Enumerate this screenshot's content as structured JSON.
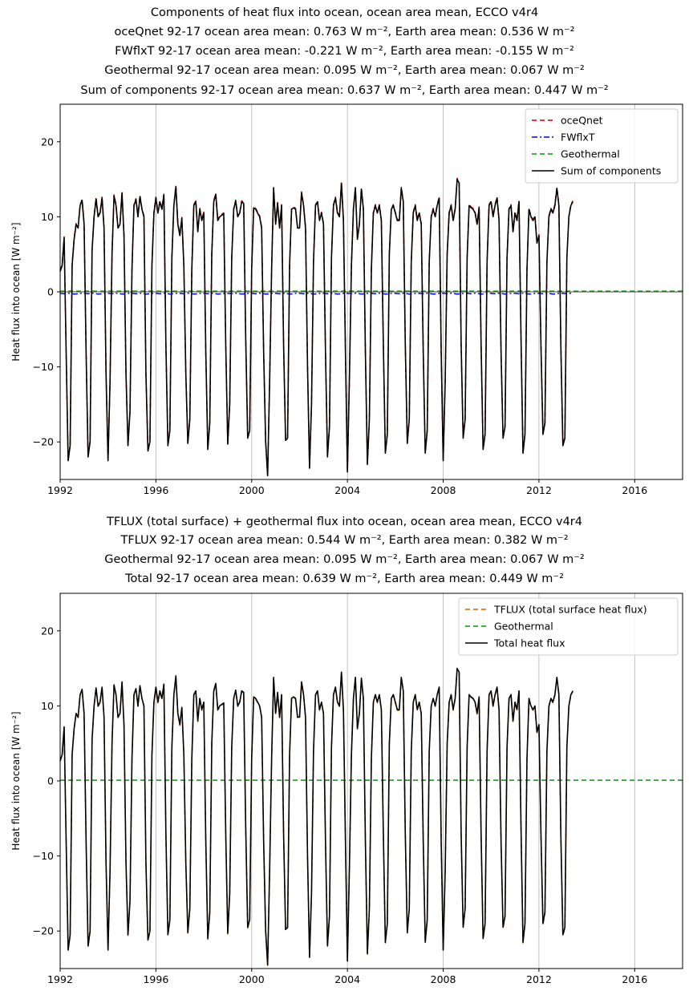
{
  "chart_data": [
    {
      "type": "line",
      "title_lines": [
        "Components of heat flux into ocean, ocean area mean, ECCO v4r4",
        "oceQnet 92-17 ocean area mean: 0.763 W m⁻², Earth area mean: 0.536 W m⁻²",
        "FWflxT 92-17 ocean area mean: -0.221 W m⁻², Earth area mean: -0.155 W m⁻²",
        "Geothermal 92-17 ocean area mean: 0.095 W m⁻², Earth area mean: 0.067 W m⁻²",
        "Sum of components 92-17 ocean area mean: 0.637 W m⁻², Earth area mean: 0.447 W m⁻²"
      ],
      "ylabel": "Heat flux into ocean [W m⁻²]",
      "xlabel": "",
      "xlim": [
        1992,
        2018
      ],
      "ylim": [
        -25,
        25
      ],
      "xticks": [
        1992,
        1996,
        2000,
        2004,
        2008,
        2012,
        2016
      ],
      "yticks": [
        -20,
        -10,
        0,
        10,
        20
      ],
      "vertical_grid": true,
      "zero_line": true,
      "legend_position": "top-right",
      "series": [
        {
          "name": "oceQnet",
          "color": "#cc0000",
          "style": "dashed",
          "source": "total_plus_offset",
          "offset": 0.13
        },
        {
          "name": "FWflxT",
          "color": "#0000ee",
          "style": "dashdot",
          "source": "fwflxt"
        },
        {
          "name": "Geothermal",
          "color": "#009900",
          "style": "dashed",
          "constant": 0.095
        },
        {
          "name": "Sum of components",
          "color": "#000000",
          "style": "solid",
          "source": "total"
        }
      ],
      "legend": [
        "oceQnet",
        "FWflxT",
        "Geothermal",
        "Sum of components"
      ]
    },
    {
      "type": "line",
      "title_lines": [
        "TFLUX (total surface) + geothermal flux into ocean, ocean area mean, ECCO v4r4",
        "TFLUX 92-17 ocean area mean: 0.544 W m⁻², Earth area mean: 0.382 W m⁻²",
        "Geothermal 92-17 ocean area mean: 0.095 W m⁻², Earth area mean: 0.067 W m⁻²",
        "Total 92-17 ocean area mean: 0.639 W m⁻², Earth area mean: 0.449 W m⁻²"
      ],
      "ylabel": "Heat flux into ocean [W m⁻²]",
      "xlabel": "",
      "xlim": [
        1992,
        2018
      ],
      "ylim": [
        -25,
        25
      ],
      "xticks": [
        1992,
        1996,
        2000,
        2004,
        2008,
        2012,
        2016
      ],
      "yticks": [
        -20,
        -10,
        0,
        10,
        20
      ],
      "vertical_grid": true,
      "zero_line": false,
      "legend_position": "top-right",
      "series": [
        {
          "name": "TFLUX (total surface heat flux)",
          "color": "#cc6600",
          "style": "dashed",
          "source": "total_plus_offset",
          "offset": -0.095
        },
        {
          "name": "Geothermal",
          "color": "#009900",
          "style": "dashed",
          "constant": 0.095
        },
        {
          "name": "Total heat flux",
          "color": "#000000",
          "style": "solid",
          "source": "total"
        }
      ],
      "legend": [
        "TFLUX (total surface heat flux)",
        "Geothermal",
        "Total heat flux"
      ]
    }
  ],
  "monthly_data": {
    "start": "1992-01",
    "total": [
      2.7,
      3.5,
      7.2,
      -8.0,
      -22.5,
      -20.5,
      3.5,
      7.0,
      9.0,
      8.5,
      11.5,
      12.2,
      9.0,
      -8.0,
      -22.0,
      -20.0,
      5.5,
      10.0,
      12.4,
      10.0,
      10.5,
      12.5,
      8.5,
      -11.0,
      -22.5,
      -12.0,
      5.0,
      12.8,
      11.5,
      8.5,
      9.0,
      13.2,
      7.5,
      -11.0,
      -20.5,
      -16.0,
      3.0,
      11.5,
      12.3,
      10.0,
      12.7,
      11.0,
      10.0,
      -11.0,
      -21.2,
      -20.0,
      3.5,
      10.5,
      12.5,
      10.5,
      12.0,
      11.0,
      12.9,
      -7.0,
      -20.5,
      -18.5,
      4.5,
      11.5,
      14.0,
      9.0,
      7.5,
      9.8,
      3.5,
      -11.0,
      -20.2,
      -17.0,
      3.0,
      11.5,
      12.0,
      8.0,
      11.0,
      9.5,
      10.5,
      -8.0,
      -21.0,
      -17.5,
      5.0,
      12.0,
      13.0,
      9.5,
      10.0,
      10.2,
      10.4,
      -7.0,
      -20.3,
      -15.0,
      4.5,
      11.0,
      12.1,
      10.0,
      10.5,
      12.0,
      11.8,
      -6.0,
      -19.5,
      -18.5,
      3.0,
      11.2,
      11.0,
      10.5,
      10.0,
      8.5,
      -8.0,
      -20.0,
      -24.5,
      -12.0,
      3.0,
      13.8,
      9.0,
      11.8,
      8.5,
      11.5,
      -7.0,
      -19.8,
      -19.5,
      3.5,
      11.0,
      11.2,
      11.0,
      8.5,
      8.5,
      13.2,
      11.5,
      8.5,
      -10.0,
      -23.5,
      -15.0,
      4.0,
      11.5,
      12.0,
      9.5,
      10.5,
      9.0,
      -8.0,
      -22.0,
      -18.0,
      4.5,
      11.5,
      12.5,
      10.5,
      10.0,
      14.5,
      9.5,
      -8.0,
      -24.0,
      -11.5,
      3.5,
      11.0,
      13.8,
      7.0,
      9.0,
      13.7,
      11.0,
      -8.0,
      -23.0,
      -17.0,
      3.0,
      10.5,
      11.5,
      10.5,
      11.5,
      9.5,
      -7.0,
      -21.5,
      -19.0,
      5.0,
      11.0,
      11.5,
      10.5,
      9.5,
      9.5,
      13.8,
      12.0,
      -7.0,
      -20.2,
      -17.0,
      4.0,
      10.5,
      11.5,
      9.5,
      10.5,
      9.0,
      -8.0,
      -21.5,
      -18.5,
      4.0,
      10.0,
      11.0,
      10.0,
      11.5,
      12.5,
      -8.0,
      -22.5,
      -12.0,
      5.0,
      10.5,
      11.5,
      9.5,
      11.0,
      15.0,
      14.5,
      -7.0,
      -19.5,
      -17.0,
      4.5,
      11.5,
      11.2,
      11.0,
      10.5,
      9.0,
      11.2,
      -7.0,
      -21.0,
      -19.0,
      4.0,
      11.5,
      12.0,
      10.0,
      11.5,
      12.5,
      9.5,
      -8.0,
      -19.5,
      -18.0,
      4.5,
      11.0,
      11.5,
      8.0,
      10.5,
      9.5,
      12.0,
      -6.0,
      -21.5,
      -19.0,
      3.0,
      11.0,
      10.0,
      9.5,
      10.0,
      6.5,
      7.5,
      -7.0,
      -19.0,
      -17.5,
      4.0,
      10.0,
      11.0,
      10.5,
      11.5,
      13.8,
      11.5,
      -7.5,
      -20.5,
      -19.5,
      4.5,
      10.0,
      11.5,
      12.0
    ],
    "fwflxt": [
      -0.2,
      -0.22,
      -0.25,
      -0.22,
      -0.18,
      -0.2,
      -0.25,
      -0.3,
      -0.28,
      -0.24,
      -0.2,
      -0.18
    ]
  }
}
